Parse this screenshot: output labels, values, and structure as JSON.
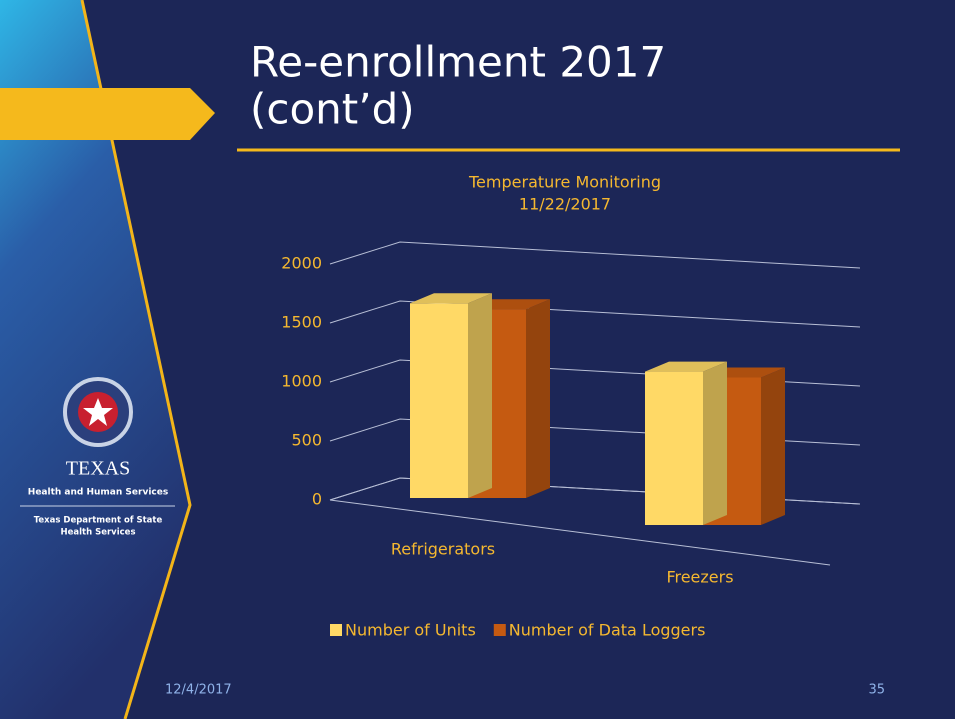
{
  "slide": {
    "title_lines": [
      "Re-enrollment 2017",
      "(cont’d)"
    ],
    "logo": {
      "name": "TEXAS",
      "agency": "Health and Human Services",
      "department_lines": [
        "Texas Department of State",
        "Health Services"
      ]
    },
    "date": "12/4/2017",
    "page_number": "35"
  },
  "chart_data": {
    "type": "bar3d",
    "title": "Temperature Monitoring",
    "subtitle": "11/22/2017",
    "categories": [
      "Refrigerators",
      "Freezers"
    ],
    "series": [
      {
        "name": "Number of Units",
        "color": "#ffd966",
        "values": [
          1650,
          1300
        ]
      },
      {
        "name": "Number of Data Loggers",
        "color": "#c55a11",
        "values": [
          1600,
          1250
        ]
      }
    ],
    "ylim": [
      0,
      2000
    ],
    "yticks": [
      0,
      500,
      1000,
      1500,
      2000
    ],
    "grid": true,
    "legend": "bottom"
  }
}
